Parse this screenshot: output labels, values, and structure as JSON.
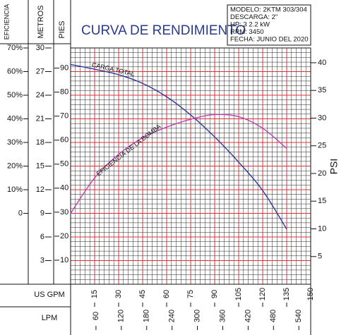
{
  "chart_data": {
    "type": "line",
    "title": "CURVA DE RENDIMIENTO",
    "info": [
      "MODELO: 2KTM 303/304",
      "DESCARGA: 2\"",
      "HP: 3              2.2 kW",
      "RPM: 3450",
      "FECHA: JUNIO DEL 2020"
    ],
    "x": [
      0,
      15,
      30,
      45,
      60,
      75,
      90,
      105,
      120,
      135
    ],
    "xlabel": "US GPM",
    "xlim": [
      0,
      150
    ],
    "xticks": [
      15,
      30,
      45,
      60,
      75,
      90,
      105,
      120,
      135,
      150
    ],
    "x2label": "LPM",
    "x2lim": [
      0,
      568
    ],
    "x2ticks": [
      60,
      120,
      180,
      240,
      300,
      360,
      420,
      480,
      540
    ],
    "ylabel": "METROS",
    "ylim": [
      0,
      30
    ],
    "yticks": [
      3,
      6,
      9,
      12,
      15,
      18,
      21,
      24,
      27,
      30
    ],
    "y2label": "EFICIENCIA",
    "y2lim": [
      -30,
      70
    ],
    "y2ticks": [
      {
        "value": 0,
        "label": "0"
      },
      {
        "value": 10,
        "label": "10%"
      },
      {
        "value": 20,
        "label": "20%"
      },
      {
        "value": 30,
        "label": "30%"
      },
      {
        "value": 40,
        "label": "40%"
      },
      {
        "value": 50,
        "label": "50%"
      },
      {
        "value": 60,
        "label": "60%"
      },
      {
        "value": 70,
        "label": "70%"
      }
    ],
    "y3label": "PIES",
    "y3lim": [
      0,
      98.4
    ],
    "y3ticks": [
      10,
      20,
      30,
      40,
      50,
      60,
      70,
      80,
      90
    ],
    "y4label": "PSI",
    "y4lim": [
      0,
      42.67
    ],
    "y4ticks": [
      5,
      10,
      15,
      20,
      25,
      30,
      35,
      40
    ],
    "grid": true,
    "grid_color": "#e0303a",
    "minor_divisions": 5,
    "series": [
      {
        "name": "CARGA TOTAL",
        "color": "#2b3a9a",
        "axis": "y",
        "values": [
          27.9,
          27.3,
          26.6,
          25.5,
          23.8,
          21.5,
          18.7,
          15.5,
          11.9,
          7.0
        ]
      },
      {
        "name": "EFICIENCIA DE LA BOMBA",
        "color": "#c040b0",
        "axis": "y2",
        "values": [
          0,
          15,
          25,
          32,
          36.5,
          39.8,
          41.8,
          40.9,
          36,
          27.5
        ]
      }
    ]
  }
}
